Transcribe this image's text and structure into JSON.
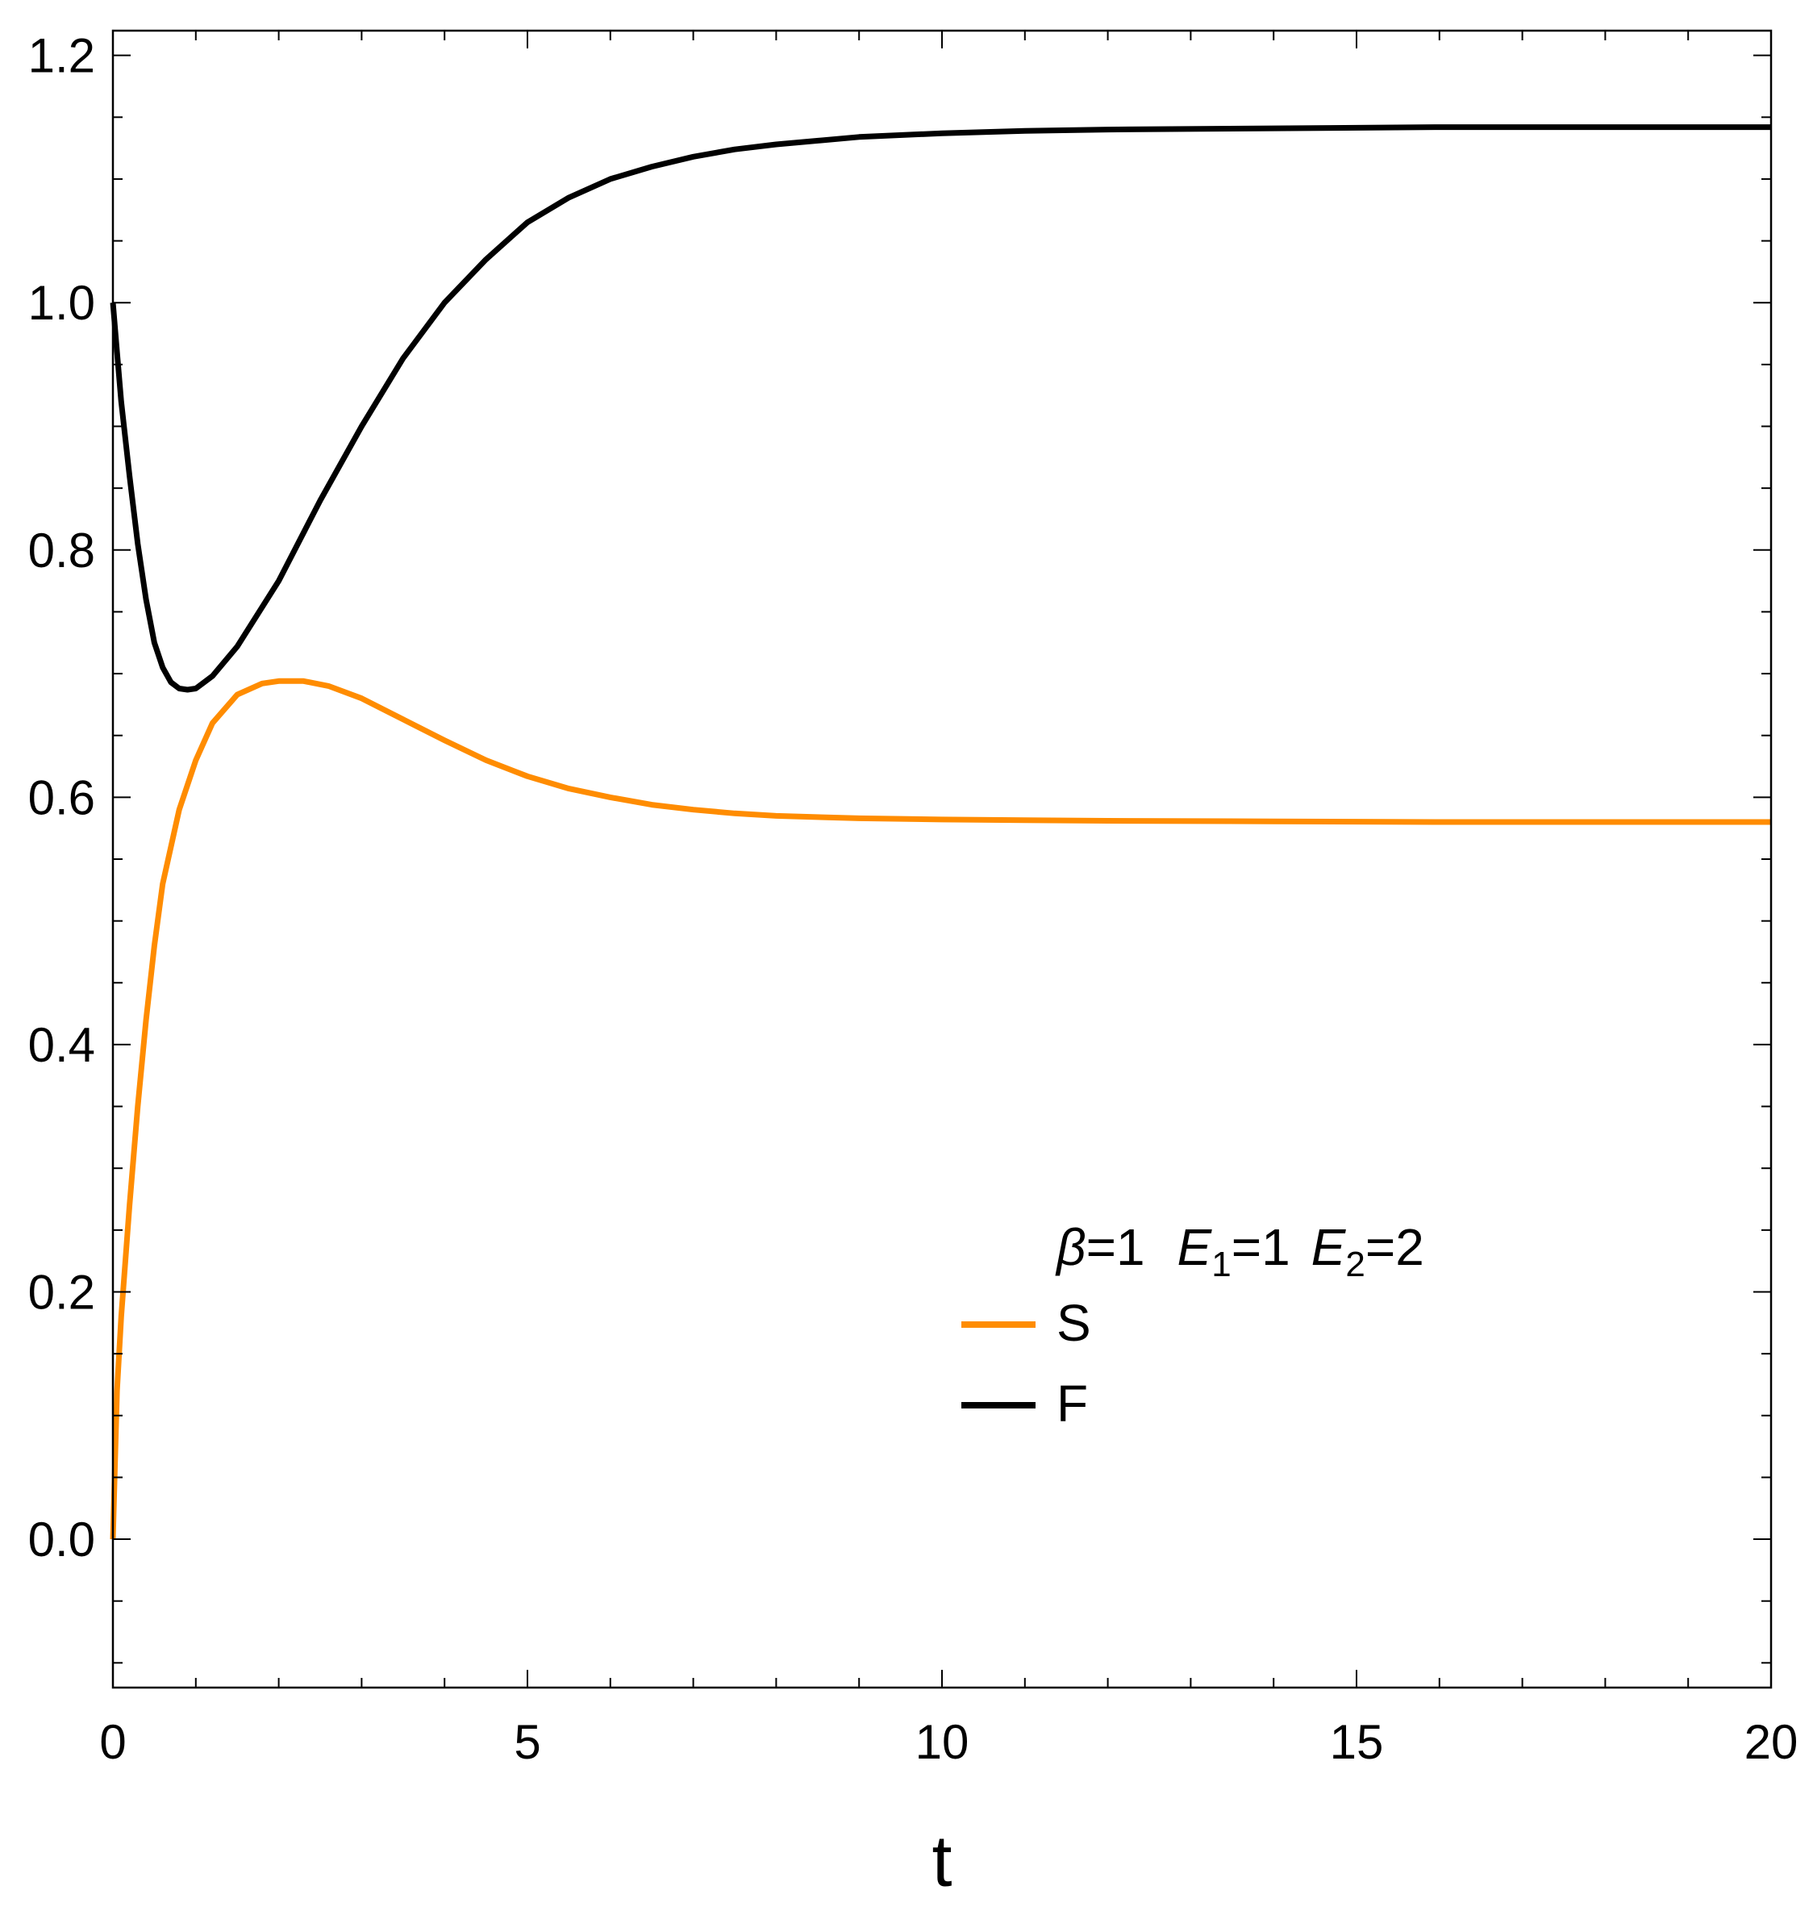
{
  "chart_data": {
    "type": "line",
    "title": "",
    "xlabel": "t",
    "ylabel": "",
    "xlim": [
      0,
      20
    ],
    "ylim": [
      -0.12,
      1.22
    ],
    "x_ticks": [
      0,
      5,
      10,
      15,
      20
    ],
    "x_tick_labels": [
      "0",
      "5",
      "10",
      "15",
      "20"
    ],
    "y_ticks": [
      0.0,
      0.2,
      0.4,
      0.6,
      0.8,
      1.0,
      1.2
    ],
    "y_tick_labels": [
      "0.0",
      "0.2",
      "0.4",
      "0.6",
      "0.8",
      "1.0",
      "1.2"
    ],
    "grid": false,
    "legend": {
      "placement": "center-right",
      "title_parts": {
        "beta_symbol": "β",
        "beta_value": "=1",
        "e1_symbol": "E",
        "e1_sub": "1",
        "e1_value": "=1",
        "e2_symbol": "E",
        "e2_sub": "2",
        "e2_value": "=2"
      }
    },
    "series": [
      {
        "name": "S",
        "color": "#ff8c00",
        "x": [
          0,
          0.05,
          0.1,
          0.2,
          0.3,
          0.4,
          0.5,
          0.6,
          0.8,
          1.0,
          1.2,
          1.5,
          1.8,
          2.0,
          2.3,
          2.6,
          3.0,
          3.5,
          4.0,
          4.5,
          5.0,
          5.5,
          6.0,
          6.5,
          7.0,
          7.5,
          8.0,
          9.0,
          10.0,
          11.0,
          12.0,
          14.0,
          16.0,
          18.0,
          20.0
        ],
        "y": [
          0.0,
          0.12,
          0.18,
          0.27,
          0.35,
          0.42,
          0.48,
          0.53,
          0.59,
          0.63,
          0.66,
          0.683,
          0.692,
          0.694,
          0.694,
          0.69,
          0.68,
          0.663,
          0.646,
          0.63,
          0.617,
          0.607,
          0.6,
          0.594,
          0.59,
          0.587,
          0.585,
          0.583,
          0.582,
          0.5815,
          0.581,
          0.5805,
          0.58,
          0.58,
          0.58
        ]
      },
      {
        "name": "F",
        "color": "#000000",
        "x": [
          0,
          0.05,
          0.1,
          0.2,
          0.3,
          0.4,
          0.5,
          0.6,
          0.7,
          0.8,
          0.9,
          1.0,
          1.2,
          1.5,
          2.0,
          2.5,
          3.0,
          3.5,
          4.0,
          4.5,
          5.0,
          5.5,
          6.0,
          6.5,
          7.0,
          7.5,
          8.0,
          9.0,
          10.0,
          11.0,
          12.0,
          14.0,
          16.0,
          18.0,
          20.0
        ],
        "y": [
          1.0,
          0.96,
          0.92,
          0.86,
          0.805,
          0.76,
          0.725,
          0.705,
          0.693,
          0.688,
          0.687,
          0.688,
          0.698,
          0.722,
          0.775,
          0.84,
          0.9,
          0.955,
          1.0,
          1.035,
          1.065,
          1.085,
          1.1,
          1.11,
          1.118,
          1.124,
          1.128,
          1.134,
          1.137,
          1.139,
          1.14,
          1.141,
          1.142,
          1.142,
          1.142
        ]
      }
    ]
  }
}
